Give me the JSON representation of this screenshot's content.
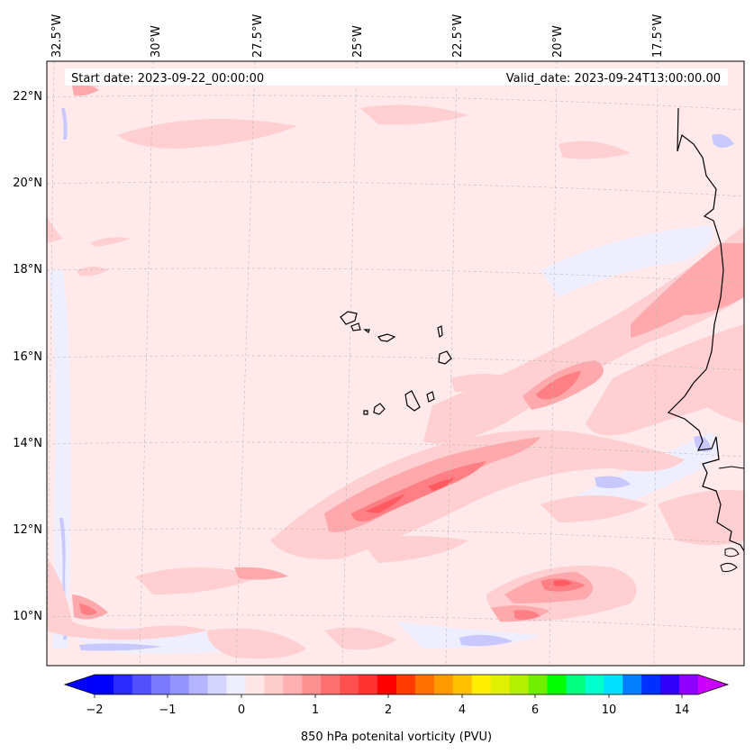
{
  "map": {
    "start_label": "Start date: 2023-09-22_00:00:00",
    "valid_label": "Valid_date: 2023-09-24T13:00:00.00",
    "lon_labels": [
      "32.5°W",
      "30°W",
      "27.5°W",
      "25°W",
      "22.5°W",
      "20°W",
      "17.5°W"
    ],
    "lat_labels": [
      "22°N",
      "20°N",
      "18°N",
      "16°N",
      "14°N",
      "12°N",
      "10°N"
    ],
    "field_colors": {
      "background": "#ffe9ea",
      "light_red": "#ffcfd1",
      "medium_red": "#ffa9ac",
      "strong_red": "#ff7f84",
      "deep_red": "#ff5a60",
      "light_blue": "#eeeeff",
      "blue": "#c8c8ff"
    }
  },
  "colorbar": {
    "label": "850 hPa potenital vorticity (PVU)",
    "tick_labels": [
      "−2",
      "−1",
      "0",
      "1",
      "2",
      "4",
      "6",
      "10",
      "14"
    ],
    "colors": [
      "#0000ff",
      "#2a2aff",
      "#5050ff",
      "#7a7aff",
      "#9494ff",
      "#b4b4ff",
      "#d4d4ff",
      "#eeeeff",
      "#ffe6e6",
      "#ffcccc",
      "#ffb0b0",
      "#ff9090",
      "#ff7070",
      "#ff5050",
      "#ff3030",
      "#ff0000",
      "#ff3a00",
      "#ff7000",
      "#ff9a00",
      "#ffc000",
      "#ffee00",
      "#e0f000",
      "#b0f000",
      "#70f000",
      "#00ff00",
      "#00ff80",
      "#00ffcc",
      "#00e0ff",
      "#0080ff",
      "#0030ff",
      "#3000ff",
      "#9000ff"
    ],
    "left_extend_color": "#0000ff",
    "right_extend_color": "#cc00ff"
  }
}
